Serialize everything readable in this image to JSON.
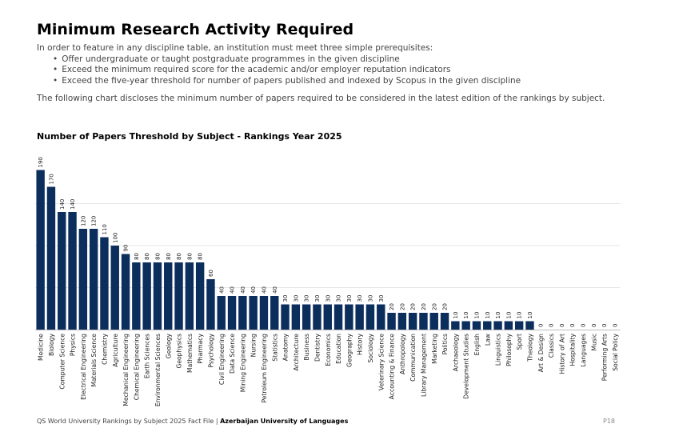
{
  "title": "Minimum Research Activity Required",
  "intro": {
    "text": "In order to feature in any discipline table, an institution must meet three simple prerequisites:",
    "bullets": [
      "Offer undergraduate or taught postgraduate programmes in the given discipline",
      "Exceed the minimum required score for the academic and/or employer reputation indicators",
      "Exceed the five-year threshold for number of papers published and indexed by Scopus in the given discipline"
    ],
    "disclosure": "The following chart discloses the minimum number of papers required to be considered in the latest edition of the rankings by subject."
  },
  "colors": {
    "bar": "#0b2e5c",
    "grid": "#e6e6e6",
    "axis": "#bbbbbb"
  },
  "chart_data": {
    "type": "bar",
    "title": "Number of Papers Threshold by Subject - Rankings Year 2025",
    "xlabel": "",
    "ylabel": "",
    "ylim": [
      0,
      200
    ],
    "grid": true,
    "data_labels": true,
    "categories": [
      "Medicine",
      "Biology",
      "Computer Science",
      "Physics",
      "Electrical Engineering",
      "Materials Science",
      "Chemistry",
      "Agriculture",
      "Mechanical Engineering",
      "Chemical Engineering",
      "Earth Sciences",
      "Environmental Sciences",
      "Geology",
      "Geophysics",
      "Mathematics",
      "Pharmacy",
      "Psychology",
      "Civil Engineering",
      "Data Science",
      "Mining Engineering",
      "Nursing",
      "Petroleum Engineering",
      "Statistics",
      "Anatomy",
      "Architecture",
      "Business",
      "Dentistry",
      "Economics",
      "Education",
      "Geography",
      "History",
      "Sociology",
      "Veterinary Science",
      "Accounting & Finance",
      "Anthropology",
      "Communication",
      "Library Management",
      "Marketing",
      "Politics",
      "Archaeology",
      "Development Studies",
      "English",
      "Law",
      "Linguistics",
      "Philosophy",
      "Sport",
      "Theology",
      "Art & Design",
      "Classics",
      "History of Art",
      "Hospitality",
      "Languages",
      "Music",
      "Performing Arts",
      "Social Policy"
    ],
    "values": [
      190,
      170,
      140,
      140,
      120,
      120,
      110,
      100,
      90,
      80,
      80,
      80,
      80,
      80,
      80,
      80,
      60,
      40,
      40,
      40,
      40,
      40,
      40,
      30,
      30,
      30,
      30,
      30,
      30,
      30,
      30,
      30,
      30,
      20,
      20,
      20,
      20,
      20,
      20,
      10,
      10,
      10,
      10,
      10,
      10,
      10,
      10,
      0,
      0,
      0,
      0,
      0,
      0,
      0,
      0
    ]
  },
  "footer": {
    "source": "QS World University Rankings by Subject 2025 Fact File |",
    "institution": "Azerbaijan University of Languages",
    "page": "P18"
  }
}
